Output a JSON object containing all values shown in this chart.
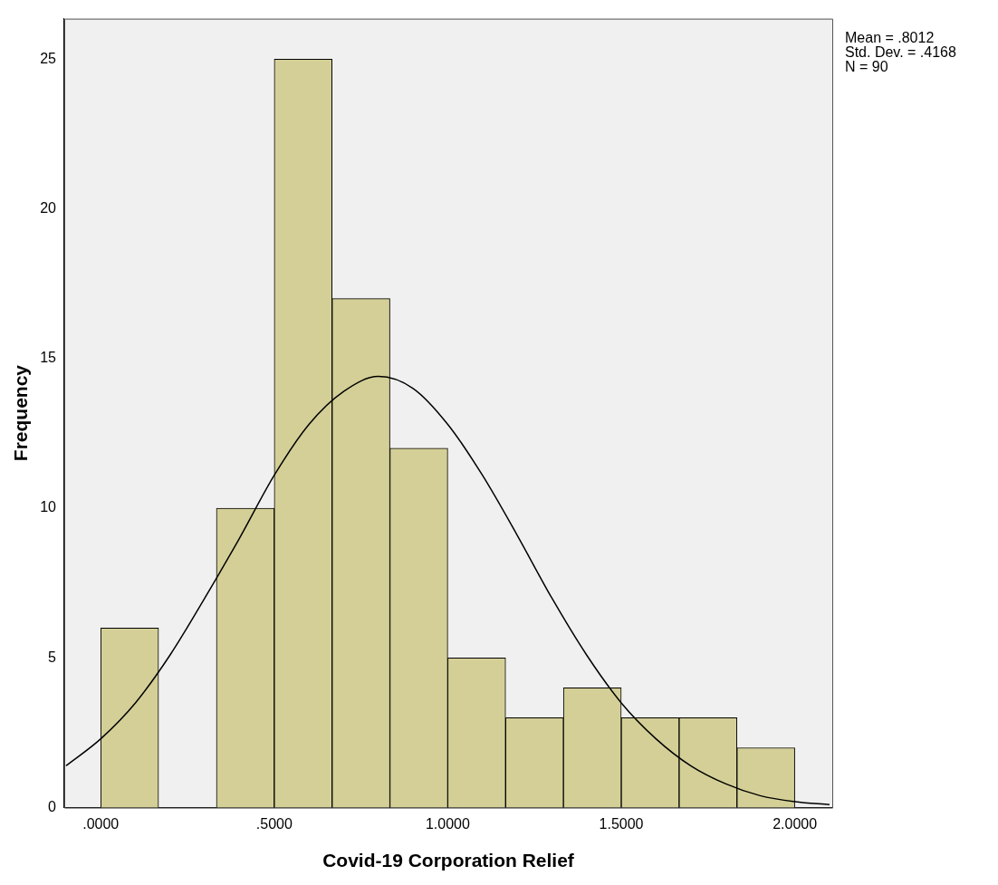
{
  "chart_data": {
    "type": "histogram",
    "xlabel": "Covid-19 Corporation Relief",
    "ylabel": "Frequency",
    "bins": [
      0,
      0.1667,
      0.3333,
      0.5,
      0.6667,
      0.8333,
      1.0,
      1.1667,
      1.3333,
      1.5,
      1.6667,
      1.8333,
      2.0
    ],
    "values": [
      6,
      0,
      10,
      25,
      17,
      12,
      5,
      3,
      4,
      3,
      3,
      2
    ],
    "color": "#d4cf96",
    "series": [
      {
        "type": "line",
        "color": "#000000",
        "marker": "none",
        "x": [
          -0.1,
          0,
          0.1,
          0.2,
          0.3,
          0.4,
          0.5,
          0.6,
          0.7,
          0.8,
          0.9,
          1.0,
          1.1,
          1.2,
          1.3,
          1.4,
          1.5,
          1.6,
          1.7,
          1.8,
          1.9,
          2.0,
          2.1
        ],
        "values": [
          1.4,
          2.3,
          3.5,
          5.1,
          7.0,
          9.0,
          11.1,
          12.8,
          13.9,
          14.4,
          14.0,
          12.8,
          11.1,
          9.1,
          7.0,
          5.1,
          3.5,
          2.3,
          1.4,
          0.8,
          0.4,
          0.2,
          0.1
        ]
      }
    ],
    "xlim": [
      -0.105,
      2.108
    ],
    "ylim": [
      0,
      26.35
    ],
    "xticks": [
      {
        "value": 0,
        "label": ".0000"
      },
      {
        "value": 0.5,
        "label": ".5000"
      },
      {
        "value": 1,
        "label": "1.0000"
      },
      {
        "value": 1.5,
        "label": "1.5000"
      },
      {
        "value": 2,
        "label": "2.0000"
      }
    ],
    "yticks": [
      0,
      5,
      10,
      15,
      20,
      25
    ],
    "annotations": [
      "Mean = .8012",
      "Std. Dev. = .4168",
      "N = 90"
    ]
  }
}
